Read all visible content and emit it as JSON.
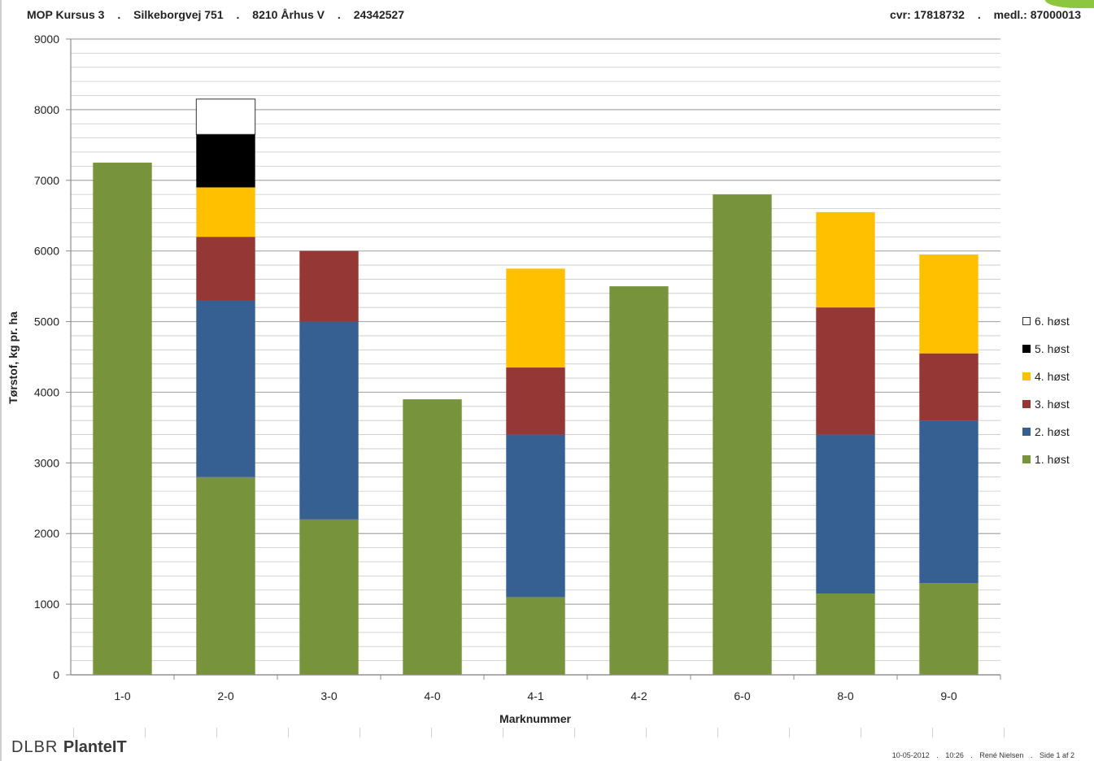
{
  "header": {
    "course": "MOP Kursus 3",
    "address": "Silkeborgvej 751",
    "postal": "8210 Århus V",
    "phone": "24342527",
    "cvr": "cvr: 17818732",
    "member": "medl.: 87000013",
    "separator": "."
  },
  "footer": {
    "logo_light": "DLBR ",
    "logo_bold": "PlanteIT",
    "date": "10-05-2012",
    "time": "10:26",
    "user": "René Nielsen",
    "page": "Side 1 af 2",
    "separator": "."
  },
  "colors": {
    "host1": "#77933c",
    "host2": "#376092",
    "host3": "#953735",
    "host4": "#ffc000",
    "host5": "#000000",
    "host6": "#ffffff",
    "grid": "#c8c8c8",
    "axis": "#8c8c8c"
  },
  "chart_data": {
    "type": "bar",
    "stacked": true,
    "title": "",
    "xlabel": "Marknummer",
    "ylabel": "Tørstof, kg pr. ha",
    "ylim": [
      0,
      9000
    ],
    "y_ticks": [
      0,
      1000,
      2000,
      3000,
      4000,
      5000,
      6000,
      7000,
      8000,
      9000
    ],
    "grid": true,
    "legend_position": "right",
    "categories": [
      "1-0",
      "2-0",
      "3-0",
      "4-0",
      "4-1",
      "4-2",
      "6-0",
      "8-0",
      "9-0"
    ],
    "series": [
      {
        "name": "1. høst",
        "color": "#77933c",
        "values": [
          7250,
          2800,
          2200,
          3900,
          1100,
          5500,
          6800,
          1150,
          1300
        ]
      },
      {
        "name": "2. høst",
        "color": "#376092",
        "values": [
          0,
          2500,
          2800,
          0,
          2300,
          0,
          0,
          2250,
          2300
        ]
      },
      {
        "name": "3. høst",
        "color": "#953735",
        "values": [
          0,
          900,
          1000,
          0,
          950,
          0,
          0,
          1800,
          950
        ]
      },
      {
        "name": "4. høst",
        "color": "#ffc000",
        "values": [
          0,
          700,
          0,
          0,
          1400,
          0,
          0,
          1350,
          1400
        ]
      },
      {
        "name": "5. høst",
        "color": "#000000",
        "values": [
          0,
          750,
          0,
          0,
          0,
          0,
          0,
          0,
          0
        ]
      },
      {
        "name": "6. høst",
        "color": "#ffffff",
        "values": [
          0,
          500,
          0,
          0,
          0,
          0,
          0,
          0,
          0
        ]
      }
    ]
  }
}
